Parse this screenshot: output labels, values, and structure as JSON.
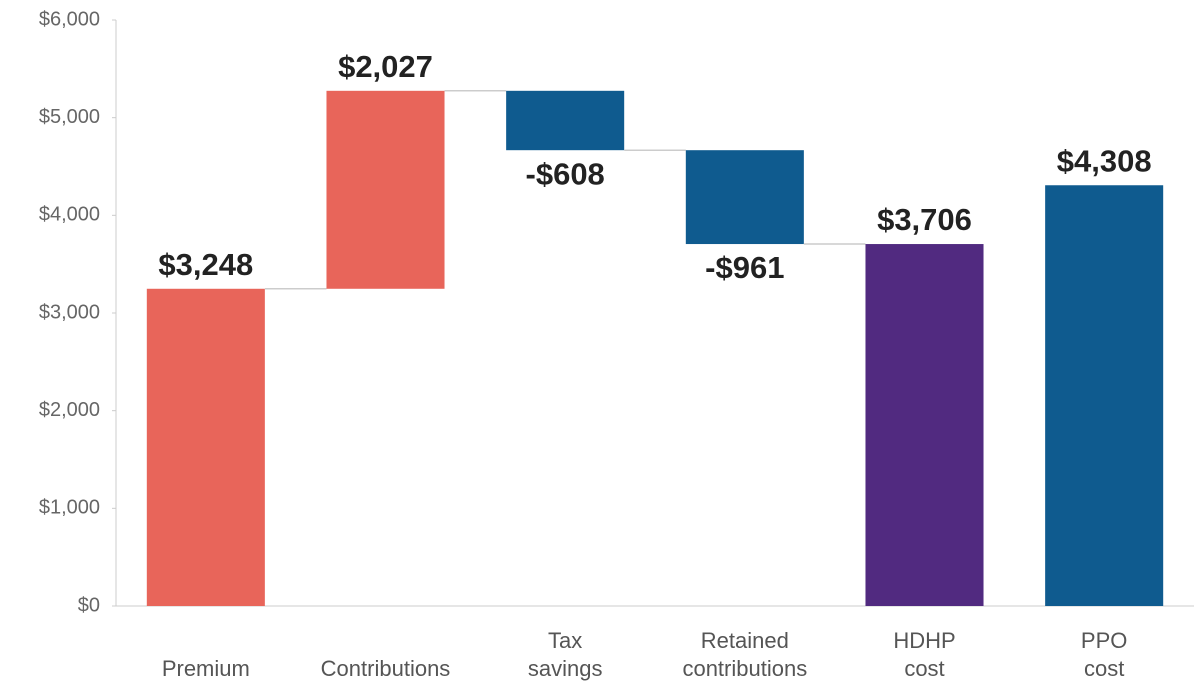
{
  "chart_data": {
    "type": "waterfall",
    "categories": [
      [
        "Premium"
      ],
      [
        "Contributions"
      ],
      [
        "Tax",
        "savings"
      ],
      [
        "Retained",
        "contributions"
      ],
      [
        "HDHP",
        "cost"
      ],
      [
        "PPO",
        "cost"
      ]
    ],
    "values": [
      3248,
      2027,
      -608,
      -961,
      3706,
      4308
    ],
    "value_labels": [
      "$3,248",
      "$2,027",
      "-$608",
      "-$961",
      "$3,706",
      "$4,308"
    ],
    "measure": [
      "absolute",
      "relative",
      "relative",
      "relative",
      "absolute",
      "absolute"
    ],
    "colors": [
      "#e8655a",
      "#e8655a",
      "#0f5b8f",
      "#0f5b8f",
      "#512a80",
      "#0f5b8f"
    ],
    "ylim": [
      0,
      6000
    ],
    "yticks": [
      {
        "value": 0,
        "label": "$0"
      },
      {
        "value": 1000,
        "label": "$1,000"
      },
      {
        "value": 2000,
        "label": "$2,000"
      },
      {
        "value": 3000,
        "label": "$3,000"
      },
      {
        "value": 4000,
        "label": "$4,000"
      },
      {
        "value": 5000,
        "label": "$5,000"
      },
      {
        "value": 6000,
        "label": "$6,000"
      }
    ]
  }
}
